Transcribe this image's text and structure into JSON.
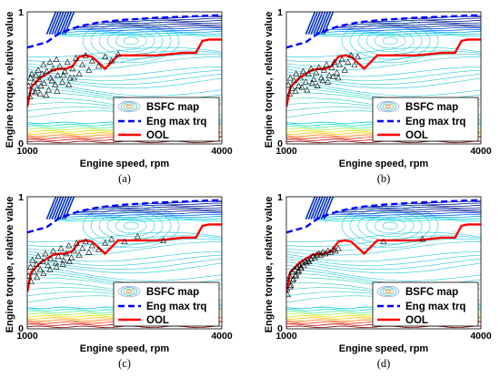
{
  "chart_data": [
    {
      "type": "line",
      "caption": "(a)",
      "xlabel": "Engine speed, rpm",
      "ylabel": "Engine torque, relative value",
      "xlim": [
        1000,
        4000
      ],
      "ylim": [
        0,
        1
      ],
      "xticks": [
        "1000",
        "4000"
      ],
      "yticks": [
        "0",
        "1"
      ],
      "grid": false,
      "legend_position": "bottom-right",
      "legend": [
        "BSFC map",
        "Eng max trq",
        "OOL"
      ],
      "colors": {
        "bsfc_low": "#00bfbf",
        "eng_max_trq": "#0000ff",
        "ool": "#ff0000",
        "points": "#000000"
      },
      "series": [
        {
          "name": "Eng max trq",
          "x": [
            1000,
            1300,
            1500,
            1800,
            2100,
            2500,
            3000,
            3500,
            4000
          ],
          "y": [
            0.73,
            0.77,
            0.84,
            0.89,
            0.92,
            0.94,
            0.955,
            0.965,
            0.975
          ]
        },
        {
          "name": "OOL",
          "x": [
            1000,
            1060,
            1100,
            1200,
            1300,
            1400,
            1500,
            1600,
            1700,
            1800,
            1900,
            2000,
            2200,
            2400,
            2600,
            2800,
            3000,
            3200,
            3400,
            3600,
            3700,
            3800,
            4000
          ],
          "y": [
            0.28,
            0.43,
            0.45,
            0.5,
            0.53,
            0.56,
            0.57,
            0.57,
            0.59,
            0.66,
            0.67,
            0.66,
            0.57,
            0.67,
            0.67,
            0.67,
            0.67,
            0.68,
            0.69,
            0.69,
            0.78,
            0.79,
            0.79
          ]
        },
        {
          "name": "operating points",
          "x": [
            1020,
            1050,
            1080,
            1100,
            1130,
            1150,
            1180,
            1200,
            1230,
            1260,
            1300,
            1330,
            1360,
            1400,
            1430,
            1470,
            1500,
            1540,
            1580,
            1620,
            1660,
            1700,
            1750,
            1800,
            1850,
            1900,
            1950,
            2000,
            2100,
            2200,
            2300,
            2400,
            1040,
            1120,
            1210,
            1290,
            1380,
            1460,
            1560,
            1640,
            1720,
            1070,
            1170,
            1250,
            1350,
            1450
          ],
          "y": [
            0.44,
            0.5,
            0.4,
            0.47,
            0.52,
            0.42,
            0.49,
            0.38,
            0.53,
            0.46,
            0.55,
            0.41,
            0.5,
            0.57,
            0.45,
            0.52,
            0.59,
            0.47,
            0.55,
            0.62,
            0.5,
            0.57,
            0.65,
            0.53,
            0.6,
            0.67,
            0.56,
            0.63,
            0.59,
            0.66,
            0.63,
            0.68,
            0.36,
            0.39,
            0.44,
            0.37,
            0.48,
            0.4,
            0.52,
            0.45,
            0.5,
            0.53,
            0.56,
            0.6,
            0.62,
            0.64
          ]
        }
      ]
    },
    {
      "type": "line",
      "caption": "(b)",
      "xlabel": "Engine speed, rpm",
      "ylabel": "Engine torque, relative value",
      "xlim": [
        1000,
        4000
      ],
      "ylim": [
        0,
        1
      ],
      "xticks": [
        "1000",
        "4000"
      ],
      "yticks": [
        "0",
        "1"
      ],
      "grid": false,
      "legend_position": "bottom-right",
      "legend": [
        "BSFC map",
        "Eng max trq",
        "OOL"
      ],
      "colors": {
        "bsfc_low": "#00bfbf",
        "eng_max_trq": "#0000ff",
        "ool": "#ff0000",
        "points": "#000000"
      },
      "series": [
        {
          "name": "Eng max trq",
          "x": [
            1000,
            1300,
            1500,
            1800,
            2100,
            2500,
            3000,
            3500,
            4000
          ],
          "y": [
            0.73,
            0.77,
            0.84,
            0.89,
            0.92,
            0.94,
            0.955,
            0.965,
            0.975
          ]
        },
        {
          "name": "OOL",
          "x": [
            1000,
            1060,
            1100,
            1200,
            1300,
            1400,
            1500,
            1600,
            1700,
            1800,
            1900,
            2000,
            2200,
            2400,
            2600,
            2800,
            3000,
            3200,
            3400,
            3600,
            3700,
            3800,
            4000
          ],
          "y": [
            0.28,
            0.43,
            0.45,
            0.5,
            0.53,
            0.56,
            0.57,
            0.57,
            0.59,
            0.66,
            0.67,
            0.66,
            0.57,
            0.67,
            0.67,
            0.67,
            0.67,
            0.68,
            0.69,
            0.69,
            0.78,
            0.79,
            0.79
          ]
        },
        {
          "name": "operating points",
          "x": [
            1030,
            1060,
            1090,
            1120,
            1150,
            1190,
            1220,
            1260,
            1300,
            1340,
            1380,
            1420,
            1460,
            1500,
            1540,
            1580,
            1620,
            1660,
            1700,
            1740,
            1780,
            1820,
            1860,
            1900,
            1950,
            2000,
            2050,
            2100,
            1050,
            1140,
            1240,
            1320,
            1400,
            1480,
            1560,
            1640,
            1720,
            1800
          ],
          "y": [
            0.45,
            0.5,
            0.42,
            0.48,
            0.53,
            0.44,
            0.5,
            0.55,
            0.47,
            0.53,
            0.57,
            0.49,
            0.54,
            0.58,
            0.5,
            0.56,
            0.6,
            0.52,
            0.58,
            0.62,
            0.54,
            0.6,
            0.64,
            0.56,
            0.62,
            0.67,
            0.6,
            0.66,
            0.38,
            0.4,
            0.43,
            0.41,
            0.46,
            0.44,
            0.48,
            0.47,
            0.51,
            0.5
          ]
        }
      ]
    },
    {
      "type": "line",
      "caption": "(c)",
      "xlabel": "Engine speed, rpm",
      "ylabel": "Engine torque, relative value",
      "xlim": [
        1000,
        4000
      ],
      "ylim": [
        0,
        1
      ],
      "xticks": [
        "1000",
        "4000"
      ],
      "yticks": [
        "0",
        "1"
      ],
      "grid": false,
      "legend_position": "bottom-right",
      "legend": [
        "BSFC map",
        "Eng max trq",
        "OOL"
      ],
      "colors": {
        "bsfc_low": "#00bfbf",
        "eng_max_trq": "#0000ff",
        "ool": "#ff0000",
        "points": "#000000"
      },
      "series": [
        {
          "name": "Eng max trq",
          "x": [
            1000,
            1300,
            1500,
            1800,
            2100,
            2500,
            3000,
            3500,
            4000
          ],
          "y": [
            0.73,
            0.77,
            0.84,
            0.89,
            0.92,
            0.94,
            0.955,
            0.965,
            0.975
          ]
        },
        {
          "name": "OOL",
          "x": [
            1000,
            1060,
            1100,
            1200,
            1300,
            1400,
            1500,
            1600,
            1700,
            1800,
            1900,
            2000,
            2200,
            2400,
            2600,
            2800,
            3000,
            3200,
            3400,
            3600,
            3700,
            3800,
            4000
          ],
          "y": [
            0.28,
            0.43,
            0.45,
            0.5,
            0.53,
            0.56,
            0.57,
            0.57,
            0.59,
            0.66,
            0.67,
            0.66,
            0.57,
            0.67,
            0.67,
            0.67,
            0.67,
            0.68,
            0.69,
            0.69,
            0.78,
            0.79,
            0.79
          ]
        },
        {
          "name": "operating points",
          "x": [
            1020,
            1050,
            1080,
            1110,
            1140,
            1170,
            1200,
            1240,
            1280,
            1320,
            1360,
            1400,
            1440,
            1480,
            1520,
            1560,
            1600,
            1640,
            1680,
            1720,
            1760,
            1800,
            1850,
            1900,
            1950,
            2000,
            2100,
            2200,
            2300,
            2500,
            2700,
            3100,
            1060,
            1150,
            1250,
            1350,
            1450,
            1550,
            1650
          ],
          "y": [
            0.4,
            0.47,
            0.52,
            0.43,
            0.49,
            0.55,
            0.45,
            0.51,
            0.57,
            0.48,
            0.53,
            0.59,
            0.5,
            0.55,
            0.61,
            0.52,
            0.57,
            0.63,
            0.54,
            0.59,
            0.65,
            0.56,
            0.61,
            0.66,
            0.58,
            0.63,
            0.6,
            0.65,
            0.68,
            0.66,
            0.7,
            0.67,
            0.36,
            0.39,
            0.42,
            0.45,
            0.47,
            0.49,
            0.51
          ]
        }
      ]
    },
    {
      "type": "line",
      "caption": "(d)",
      "xlabel": "Engine speed, rpm",
      "ylabel": "Engine torque, relative value",
      "xlim": [
        1000,
        4000
      ],
      "ylim": [
        0,
        1
      ],
      "xticks": [
        "1000",
        "4000"
      ],
      "yticks": [
        "0",
        "1"
      ],
      "grid": false,
      "legend_position": "bottom-right",
      "legend": [
        "BSFC map",
        "Eng max trq",
        "OOL"
      ],
      "colors": {
        "bsfc_low": "#00bfbf",
        "eng_max_trq": "#0000ff",
        "ool": "#ff0000",
        "points": "#000000"
      },
      "series": [
        {
          "name": "Eng max trq",
          "x": [
            1000,
            1300,
            1500,
            1800,
            2100,
            2500,
            3000,
            3500,
            4000
          ],
          "y": [
            0.73,
            0.77,
            0.84,
            0.89,
            0.92,
            0.94,
            0.955,
            0.965,
            0.975
          ]
        },
        {
          "name": "OOL",
          "x": [
            1000,
            1060,
            1100,
            1200,
            1300,
            1400,
            1500,
            1600,
            1700,
            1800,
            1900,
            2000,
            2200,
            2400,
            2600,
            2800,
            3000,
            3200,
            3400,
            3600,
            3700,
            3800,
            4000
          ],
          "y": [
            0.28,
            0.43,
            0.45,
            0.5,
            0.53,
            0.56,
            0.57,
            0.57,
            0.59,
            0.66,
            0.67,
            0.66,
            0.57,
            0.67,
            0.67,
            0.67,
            0.67,
            0.68,
            0.69,
            0.69,
            0.78,
            0.79,
            0.79
          ]
        },
        {
          "name": "operating points",
          "x": [
            1010,
            1030,
            1050,
            1070,
            1090,
            1110,
            1130,
            1150,
            1170,
            1190,
            1210,
            1230,
            1250,
            1270,
            1290,
            1310,
            1330,
            1350,
            1380,
            1410,
            1440,
            1470,
            1500,
            1530,
            1560,
            1600,
            1640,
            1680,
            1720,
            1760,
            1800,
            1020,
            1060,
            1100,
            1140,
            1180,
            1220,
            2500,
            3100
          ],
          "y": [
            0.3,
            0.36,
            0.4,
            0.33,
            0.43,
            0.38,
            0.45,
            0.41,
            0.47,
            0.44,
            0.48,
            0.46,
            0.5,
            0.48,
            0.51,
            0.5,
            0.52,
            0.51,
            0.53,
            0.55,
            0.54,
            0.56,
            0.57,
            0.56,
            0.58,
            0.57,
            0.59,
            0.58,
            0.6,
            0.59,
            0.61,
            0.26,
            0.32,
            0.37,
            0.4,
            0.43,
            0.46,
            0.66,
            0.68
          ]
        }
      ]
    }
  ]
}
